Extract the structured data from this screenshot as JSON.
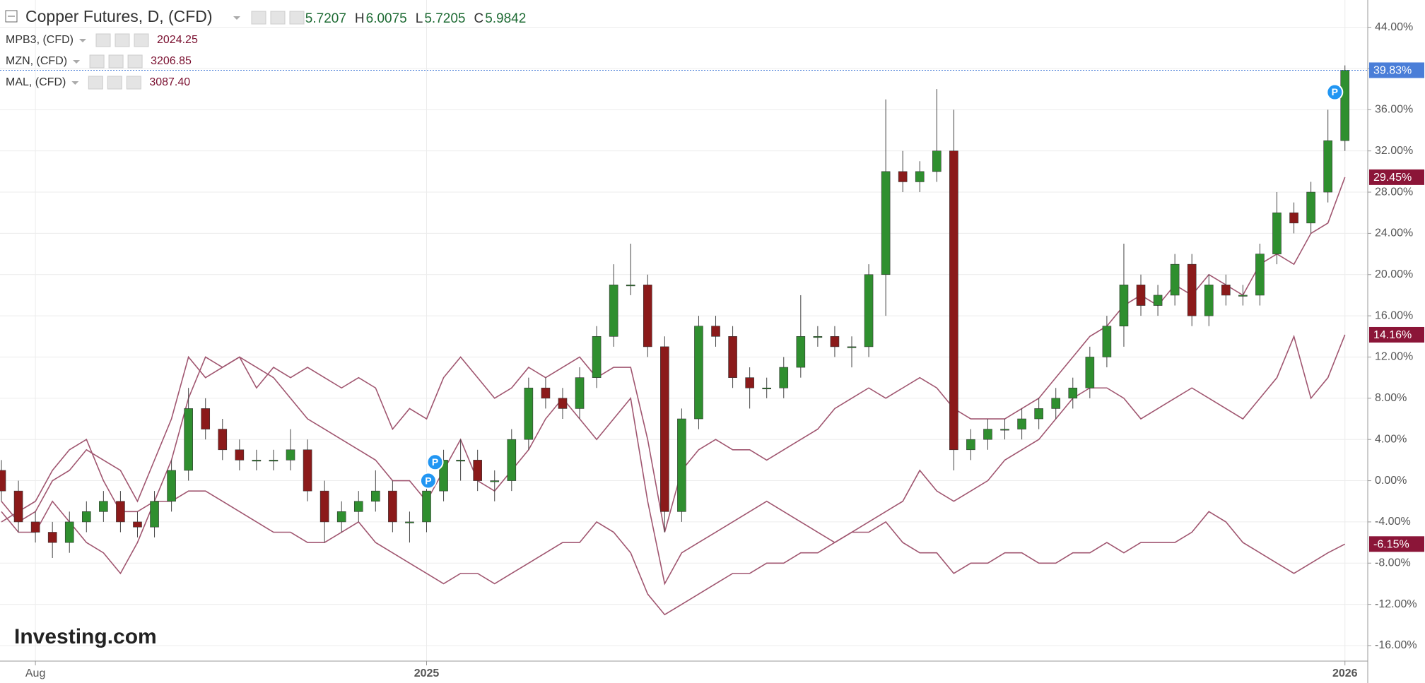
{
  "chart_data": {
    "type": "candlestick",
    "title": "Copper Futures, D, (CFD)",
    "ohlc_labels": [
      "O",
      "H",
      "L",
      "C"
    ],
    "ohlc_values": [
      5.7207,
      6.0075,
      5.7205,
      5.9842
    ],
    "watermark": "Investing.com",
    "categories": [
      null,
      null,
      "Aug",
      null,
      null,
      null,
      null,
      null,
      null,
      null,
      null,
      null,
      null,
      null,
      null,
      null,
      null,
      null,
      null,
      null,
      null,
      null,
      null,
      null,
      null,
      "2025",
      null,
      null,
      null,
      null,
      null,
      null,
      null,
      null,
      null,
      null,
      null,
      null,
      null,
      null,
      null,
      null,
      null,
      null,
      null,
      null,
      null,
      null,
      null,
      null,
      null,
      null,
      null,
      null,
      null,
      null,
      null,
      null,
      null,
      null,
      null,
      null,
      null,
      null,
      null,
      null,
      null,
      null,
      null,
      null,
      null,
      null,
      null,
      null,
      null,
      null,
      null,
      null,
      null,
      "2026"
    ],
    "ylim": [
      -16,
      44
    ],
    "yticks": [
      {
        "value": -16,
        "label": "-16.00%"
      },
      {
        "value": -12,
        "label": "-12.00%"
      },
      {
        "value": -8,
        "label": "-8.00%"
      },
      {
        "value": -4,
        "label": "-4.00%"
      },
      {
        "value": 0,
        "label": "0.00%"
      },
      {
        "value": 4,
        "label": "4.00%"
      },
      {
        "value": 8,
        "label": "8.00%"
      },
      {
        "value": 12,
        "label": "12.00%"
      },
      {
        "value": 16,
        "label": "16.00%"
      },
      {
        "value": 20,
        "label": "20.00%"
      },
      {
        "value": 24,
        "label": "24.00%"
      },
      {
        "value": 28,
        "label": "28.00%"
      },
      {
        "value": 32,
        "label": "32.00%"
      },
      {
        "value": 36,
        "label": "36.00%"
      },
      {
        "value": 40,
        "label": "40.00%"
      },
      {
        "value": 44,
        "label": "44.00%"
      }
    ],
    "grid": true,
    "up_color": "#2f8f2f",
    "down_color": "#8b1a1a",
    "end_color": "#4a7ed8",
    "end_value": 39.83,
    "end_label": "39.83%",
    "open": [
      1,
      -1,
      -4,
      -5,
      -6,
      -4,
      -3,
      -2,
      -4,
      -4.5,
      -2,
      1,
      7,
      5,
      3,
      2,
      2,
      2,
      3,
      -1,
      -4,
      -3,
      -2,
      -1,
      -4,
      -4,
      -1,
      2,
      2,
      0,
      0,
      4,
      9,
      8,
      7,
      10,
      14,
      19,
      19,
      13,
      -3,
      6,
      15,
      14,
      10,
      9,
      9,
      11,
      14,
      14,
      13,
      13,
      20,
      30,
      29,
      30,
      32,
      3,
      4,
      5,
      5,
      6,
      7,
      8,
      9,
      12,
      15,
      19,
      17,
      18,
      21,
      16,
      19,
      18,
      18,
      22,
      26,
      25,
      28,
      33
    ],
    "high": [
      2,
      0,
      -3,
      -4,
      -3,
      -2,
      -1,
      -1,
      -3,
      -1,
      2,
      9,
      8,
      6,
      4,
      3,
      3,
      5,
      4,
      0,
      -2,
      -1,
      1,
      0,
      -3,
      0,
      3,
      4,
      3,
      1,
      5,
      10,
      10,
      9,
      11,
      15,
      21,
      23,
      20,
      14,
      7,
      16,
      16,
      15,
      11,
      10,
      12,
      18,
      15,
      15,
      14,
      21,
      37,
      32,
      31,
      38,
      36,
      5,
      6,
      6,
      7,
      8,
      9,
      10,
      13,
      16,
      23,
      20,
      19,
      22,
      22,
      20,
      20,
      19,
      23,
      28,
      27,
      29,
      36,
      40.3
    ],
    "low": [
      -2,
      -5,
      -6,
      -7.5,
      -7,
      -5,
      -4,
      -5,
      -5.5,
      -5.5,
      -3,
      0,
      4,
      2,
      1,
      1,
      1,
      1,
      -2,
      -6,
      -5,
      -4,
      -3,
      -5,
      -6,
      -5,
      -2,
      0,
      -1,
      -2,
      -1,
      3,
      7,
      6,
      6,
      9,
      13,
      18,
      12,
      -5,
      -4,
      5,
      13,
      9,
      7,
      8,
      8,
      10,
      13,
      12,
      11,
      12,
      16,
      28,
      28,
      29,
      1,
      2,
      3,
      4,
      4,
      5,
      6,
      7,
      8,
      11,
      13,
      16,
      16,
      17,
      15,
      15,
      17,
      17,
      17,
      21,
      24,
      24,
      27,
      32
    ],
    "close": [
      -1,
      -4,
      -5,
      -6,
      -4,
      -3,
      -2,
      -4,
      -4.5,
      -2,
      1,
      7,
      5,
      3,
      2,
      2,
      2,
      3,
      -1,
      -4,
      -3,
      -2,
      -1,
      -4,
      -4,
      -1,
      2,
      2,
      0,
      0,
      4,
      9,
      8,
      7,
      10,
      14,
      19,
      19,
      13,
      -3,
      6,
      15,
      14,
      10,
      9,
      9,
      11,
      14,
      14,
      13,
      13,
      20,
      30,
      29,
      30,
      32,
      3,
      4,
      5,
      5,
      6,
      7,
      8,
      9,
      12,
      15,
      19,
      17,
      18,
      21,
      16,
      19,
      18,
      18,
      22,
      26,
      25,
      28,
      33,
      39.83
    ],
    "markers": [
      {
        "text": "P",
        "x": 25.1,
        "y": 0
      },
      {
        "text": "P",
        "x": 25.5,
        "y": 1.8
      },
      {
        "text": "P",
        "x": 78.4,
        "y": 37.7
      }
    ],
    "series": [
      {
        "name": "MPB3, (CFD)",
        "last": "2024.25",
        "color": "#a05670",
        "end_value": -6.15,
        "end_label": "-6.15%",
        "label_color": "#8b1538",
        "values": [
          -4,
          -3,
          -2,
          1,
          3,
          4,
          0,
          -3,
          -3,
          -2,
          -2,
          -1,
          -1,
          -2,
          -3,
          -4,
          -5,
          -5,
          -6,
          -6,
          -5,
          -4,
          -6,
          -7,
          -8,
          -9,
          -10,
          -9,
          -9,
          -10,
          -9,
          -8,
          -7,
          -6,
          -6,
          -4,
          -5,
          -7,
          -11,
          -13,
          -12,
          -11,
          -10,
          -9,
          -9,
          -8,
          -8,
          -7,
          -7,
          -6,
          -5,
          -5,
          -4,
          -6,
          -7,
          -7,
          -9,
          -8,
          -8,
          -7,
          -7,
          -8,
          -8,
          -7,
          -7,
          -6,
          -7,
          -6,
          -6,
          -6,
          -5,
          -3,
          -4,
          -6,
          -7,
          -8,
          -9,
          -8,
          -7,
          -6.15
        ]
      },
      {
        "name": "MZN, (CFD)",
        "last": "3206.85",
        "color": "#a05670",
        "end_value": 14.16,
        "end_label": "14.16%",
        "label_color": "#8b1538",
        "values": [
          -3,
          -5,
          -5,
          -2,
          -4,
          -6,
          -7,
          -9,
          -6,
          -2,
          2,
          8,
          12,
          11,
          12,
          11,
          10,
          8,
          6,
          5,
          4,
          3,
          2,
          0,
          0,
          -2,
          1,
          4,
          0,
          -1,
          1,
          3,
          6,
          8,
          6,
          4,
          6,
          8,
          -2,
          -10,
          -7,
          -6,
          -5,
          -4,
          -3,
          -2,
          -3,
          -4,
          -5,
          -6,
          -5,
          -4,
          -3,
          -2,
          1,
          -1,
          -2,
          -1,
          0,
          2,
          3,
          4,
          6,
          8,
          9,
          9,
          8,
          6,
          7,
          8,
          9,
          8,
          7,
          6,
          8,
          10,
          14,
          8,
          10,
          14.16
        ]
      },
      {
        "name": "MAL, (CFD)",
        "last": "3087.40",
        "color": "#a05670",
        "end_value": 29.45,
        "end_label": "29.45%",
        "label_color": "#8b1538",
        "values": [
          -2,
          -4,
          -3,
          0,
          1,
          3,
          2,
          1,
          -2,
          2,
          6,
          12,
          10,
          11,
          12,
          9,
          11,
          10,
          11,
          10,
          9,
          10,
          9,
          5,
          7,
          6,
          10,
          12,
          10,
          8,
          9,
          11,
          10,
          11,
          12,
          10,
          11,
          11,
          4,
          -5,
          1,
          3,
          4,
          3,
          3,
          2,
          3,
          4,
          5,
          7,
          8,
          9,
          8,
          9,
          10,
          9,
          7,
          6,
          6,
          6,
          7,
          8,
          10,
          12,
          14,
          15,
          17,
          18,
          17,
          19,
          18,
          20,
          19,
          18,
          21,
          22,
          21,
          24,
          25,
          29.45
        ]
      }
    ]
  }
}
